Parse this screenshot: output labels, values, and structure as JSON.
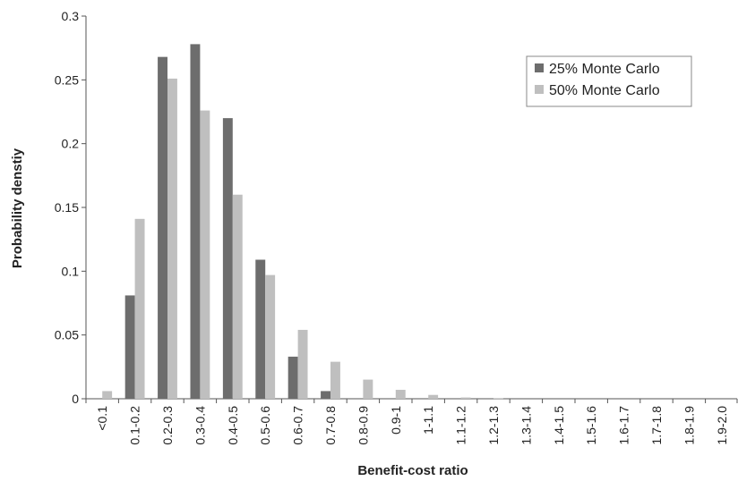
{
  "chart_data": {
    "type": "bar",
    "title": "",
    "xlabel": "Benefit-cost ratio",
    "ylabel": "Probability denstiy",
    "ylim": [
      0,
      0.3
    ],
    "yticks": [
      "0",
      "0.05",
      "0.1",
      "0.15",
      "0.2",
      "0.25",
      "0.3"
    ],
    "categories": [
      "<0.1",
      "0.1-0.2",
      "0.2-0.3",
      "0.3-0.4",
      "0.4-0.5",
      "0.5-0.6",
      "0.6-0.7",
      "0.7-0.8",
      "0.8-0.9",
      "0.9-1",
      "1-1.1",
      "1.1-1.2",
      "1.2-1.3",
      "1.3-1.4",
      "1.4-1.5",
      "1.5-1.6",
      "1.6-1.7",
      "1.7-1.8",
      "1.8-1.9",
      "1.9-2.0"
    ],
    "series": [
      {
        "name": "25% Monte Carlo",
        "color": "#6d6d6d",
        "values": [
          0,
          0.081,
          0.268,
          0.278,
          0.22,
          0.109,
          0.033,
          0.006,
          0,
          0,
          0,
          0,
          0,
          0,
          0,
          0,
          0,
          0,
          0,
          0
        ]
      },
      {
        "name": "50% Monte Carlo",
        "color": "#bfbfbf",
        "values": [
          0.006,
          0.141,
          0.251,
          0.226,
          0.16,
          0.097,
          0.054,
          0.029,
          0.015,
          0.007,
          0.003,
          0.001,
          0.0005,
          0,
          0,
          0,
          0,
          0,
          0,
          0
        ]
      }
    ],
    "legend": "top-right",
    "grid": false
  }
}
